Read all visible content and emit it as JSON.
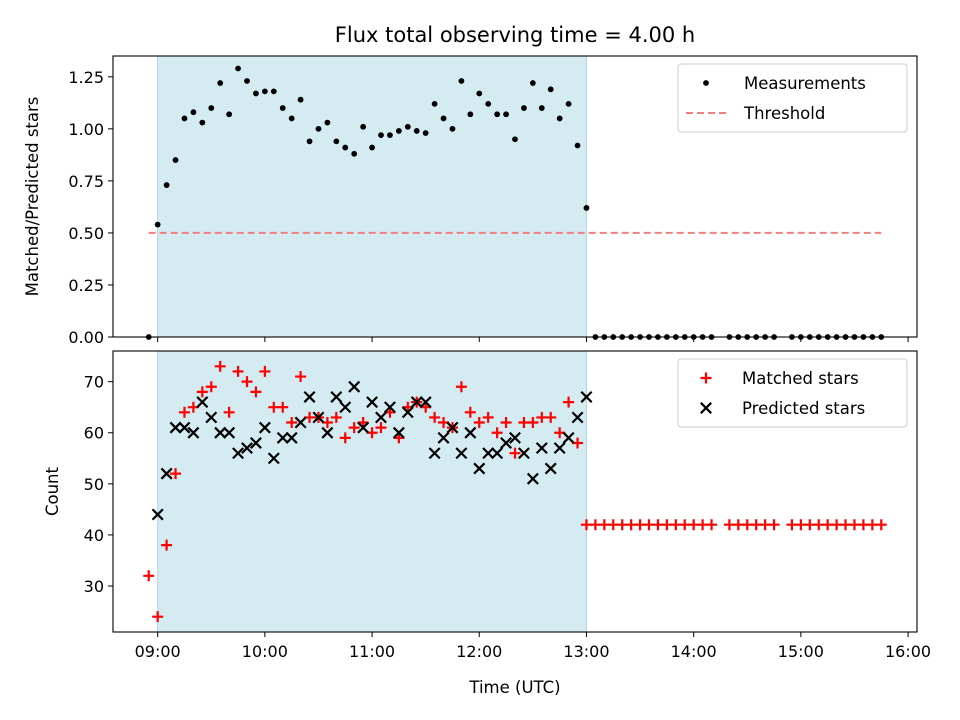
{
  "chart_data": [
    {
      "type": "scatter",
      "title": "Flux total observing time = 4.00 h",
      "xlabel": "",
      "ylabel": "Matched/Predicted stars",
      "xlim": [
        "08:35",
        "16:05"
      ],
      "ylim": [
        0,
        1.35
      ],
      "yticks": [
        "0.00",
        "0.25",
        "0.50",
        "0.75",
        "1.00",
        "1.25"
      ],
      "shaded_span": {
        "from": "09:00",
        "to": "13:00",
        "color": "#add8e6"
      },
      "legend": {
        "position": "top-right",
        "entries": [
          "Measurements",
          "Threshold"
        ]
      },
      "threshold": {
        "name": "Threshold",
        "y": 0.5,
        "x_from": "08:55",
        "x_to": "15:45",
        "color": "#f08080",
        "style": "dashed"
      },
      "series": [
        {
          "name": "Measurements",
          "marker": "dot",
          "color": "#000000",
          "x": [
            "08:55",
            "09:00",
            "09:05",
            "09:10",
            "09:15",
            "09:20",
            "09:25",
            "09:30",
            "09:35",
            "09:40",
            "09:45",
            "09:50",
            "09:55",
            "10:00",
            "10:05",
            "10:10",
            "10:15",
            "10:20",
            "10:25",
            "10:30",
            "10:35",
            "10:40",
            "10:45",
            "10:50",
            "10:55",
            "11:00",
            "11:05",
            "11:10",
            "11:15",
            "11:20",
            "11:25",
            "11:30",
            "11:35",
            "11:40",
            "11:45",
            "11:50",
            "11:55",
            "12:00",
            "12:05",
            "12:10",
            "12:15",
            "12:20",
            "12:25",
            "12:30",
            "12:35",
            "12:40",
            "12:45",
            "12:50",
            "12:55",
            "13:00",
            "13:05",
            "13:10",
            "13:15",
            "13:20",
            "13:25",
            "13:30",
            "13:35",
            "13:40",
            "13:45",
            "13:50",
            "13:55",
            "14:00",
            "14:05",
            "14:10",
            "14:20",
            "14:25",
            "14:30",
            "14:35",
            "14:40",
            "14:45",
            "14:55",
            "15:00",
            "15:05",
            "15:10",
            "15:15",
            "15:20",
            "15:25",
            "15:30",
            "15:35",
            "15:40",
            "15:45"
          ],
          "y": [
            0.0,
            0.54,
            0.73,
            0.85,
            1.05,
            1.08,
            1.03,
            1.1,
            1.22,
            1.07,
            1.29,
            1.23,
            1.17,
            1.18,
            1.18,
            1.1,
            1.05,
            1.14,
            0.94,
            1.0,
            1.03,
            0.94,
            0.91,
            0.88,
            1.01,
            0.91,
            0.97,
            0.97,
            0.99,
            1.01,
            0.99,
            0.98,
            1.12,
            1.05,
            1.0,
            1.23,
            1.07,
            1.17,
            1.12,
            1.07,
            1.07,
            0.95,
            1.1,
            1.22,
            1.1,
            1.19,
            1.05,
            1.12,
            0.92,
            0.62,
            0,
            0,
            0,
            0,
            0,
            0,
            0,
            0,
            0,
            0,
            0,
            0,
            0,
            0,
            0,
            0,
            0,
            0,
            0,
            0,
            0,
            0,
            0,
            0,
            0,
            0,
            0,
            0,
            0,
            0,
            0
          ]
        }
      ]
    },
    {
      "type": "scatter",
      "title": "",
      "xlabel": "Time (UTC)",
      "ylabel": "Count",
      "xlim": [
        "08:35",
        "16:05"
      ],
      "ylim": [
        21,
        76
      ],
      "yticks": [
        "30",
        "40",
        "50",
        "60",
        "70"
      ],
      "xticks": [
        "09:00",
        "10:00",
        "11:00",
        "12:00",
        "13:00",
        "14:00",
        "15:00",
        "16:00"
      ],
      "shaded_span": {
        "from": "09:00",
        "to": "13:00",
        "color": "#add8e6"
      },
      "legend": {
        "position": "top-right",
        "entries": [
          "Matched stars",
          "Predicted stars"
        ]
      },
      "series": [
        {
          "name": "Matched stars",
          "marker": "plus",
          "color": "#ff0000",
          "x": [
            "08:55",
            "09:00",
            "09:05",
            "09:10",
            "09:15",
            "09:20",
            "09:25",
            "09:30",
            "09:35",
            "09:40",
            "09:45",
            "09:50",
            "09:55",
            "10:00",
            "10:05",
            "10:10",
            "10:15",
            "10:20",
            "10:25",
            "10:30",
            "10:35",
            "10:40",
            "10:45",
            "10:50",
            "10:55",
            "11:00",
            "11:05",
            "11:10",
            "11:15",
            "11:20",
            "11:25",
            "11:30",
            "11:35",
            "11:40",
            "11:45",
            "11:50",
            "11:55",
            "12:00",
            "12:05",
            "12:10",
            "12:15",
            "12:20",
            "12:25",
            "12:30",
            "12:35",
            "12:40",
            "12:45",
            "12:50",
            "12:55",
            "13:00",
            "13:05",
            "13:10",
            "13:15",
            "13:20",
            "13:25",
            "13:30",
            "13:35",
            "13:40",
            "13:45",
            "13:50",
            "13:55",
            "14:00",
            "14:05",
            "14:10",
            "14:20",
            "14:25",
            "14:30",
            "14:35",
            "14:40",
            "14:45",
            "14:55",
            "15:00",
            "15:05",
            "15:10",
            "15:15",
            "15:20",
            "15:25",
            "15:30",
            "15:35",
            "15:40",
            "15:45"
          ],
          "y": [
            32,
            24,
            38,
            52,
            64,
            65,
            68,
            69,
            73,
            64,
            72,
            70,
            68,
            72,
            65,
            65,
            62,
            71,
            63,
            63,
            62,
            63,
            59,
            61,
            62,
            60,
            61,
            64,
            59,
            65,
            66,
            65,
            63,
            62,
            61,
            69,
            64,
            62,
            63,
            60,
            62,
            56,
            62,
            62,
            63,
            63,
            60,
            66,
            58,
            42,
            42,
            42,
            42,
            42,
            42,
            42,
            42,
            42,
            42,
            42,
            42,
            42,
            42,
            42,
            42,
            42,
            42,
            42,
            42,
            42,
            42,
            42,
            42,
            42,
            42,
            42,
            42,
            42,
            42,
            42,
            42
          ]
        },
        {
          "name": "Predicted stars",
          "marker": "x",
          "color": "#000000",
          "x": [
            "09:00",
            "09:05",
            "09:10",
            "09:15",
            "09:20",
            "09:25",
            "09:30",
            "09:35",
            "09:40",
            "09:45",
            "09:50",
            "09:55",
            "10:00",
            "10:05",
            "10:10",
            "10:15",
            "10:20",
            "10:25",
            "10:30",
            "10:35",
            "10:40",
            "10:45",
            "10:50",
            "10:55",
            "11:00",
            "11:05",
            "11:10",
            "11:15",
            "11:20",
            "11:25",
            "11:30",
            "11:35",
            "11:40",
            "11:45",
            "11:50",
            "11:55",
            "12:00",
            "12:05",
            "12:10",
            "12:15",
            "12:20",
            "12:25",
            "12:30",
            "12:35",
            "12:40",
            "12:45",
            "12:50",
            "12:55",
            "13:00"
          ],
          "y": [
            44,
            52,
            61,
            61,
            60,
            66,
            63,
            60,
            60,
            56,
            57,
            58,
            61,
            55,
            59,
            59,
            62,
            67,
            63,
            60,
            67,
            65,
            69,
            61,
            66,
            63,
            65,
            60,
            64,
            66,
            66,
            56,
            59,
            61,
            56,
            60,
            53,
            56,
            56,
            58,
            59,
            56,
            51,
            57,
            53,
            57,
            59,
            63,
            67
          ]
        }
      ]
    }
  ]
}
